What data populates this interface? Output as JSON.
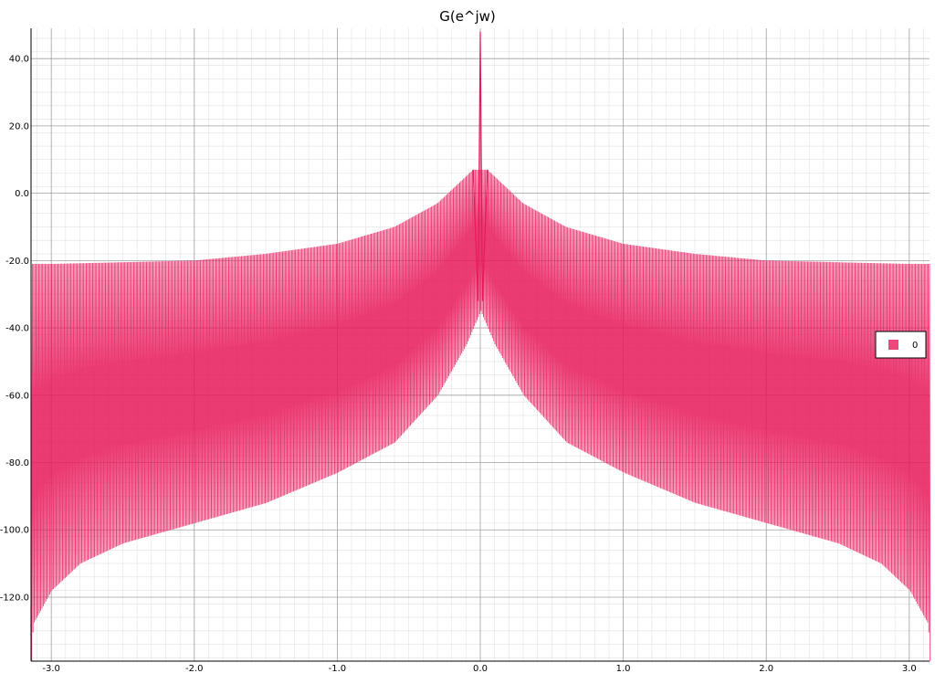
{
  "chart_data": {
    "type": "line",
    "title": "G(e^jw)",
    "xlabel": "",
    "ylabel": "",
    "xlim": [
      -3.1416,
      3.1416
    ],
    "ylim": [
      -139,
      49
    ],
    "grid": true,
    "minor_grid": true,
    "legend_position": "right",
    "x_ticks": [
      -3.0,
      -2.0,
      -1.0,
      0.0,
      1.0,
      2.0,
      3.0
    ],
    "x_tick_labels": [
      "-3.0",
      "-2.0",
      "-1.0",
      "0.0",
      "1.0",
      "2.0",
      "3.0"
    ],
    "y_ticks": [
      40,
      20,
      0,
      -20,
      -40,
      -60,
      -80,
      -100,
      -120
    ],
    "y_tick_labels": [
      "40.0",
      "20.0",
      "0.0",
      "-20.0",
      "-40.0",
      "-60.0",
      "-80.0",
      "-100.0",
      "-120.0"
    ],
    "series": [
      {
        "name": "0",
        "color": "#e8195a",
        "description_hint": "dense oscillating magnitude response",
        "peak": {
          "x": 0.0,
          "y": 48
        },
        "upper_envelope": [
          [
            -3.1416,
            -21
          ],
          [
            -3.0,
            -21
          ],
          [
            -2.5,
            -20.5
          ],
          [
            -2.0,
            -20
          ],
          [
            -1.5,
            -18
          ],
          [
            -1.0,
            -15
          ],
          [
            -0.6,
            -10
          ],
          [
            -0.3,
            -3
          ],
          [
            -0.05,
            7
          ],
          [
            0.05,
            7
          ],
          [
            0.3,
            -3
          ],
          [
            0.6,
            -10
          ],
          [
            1.0,
            -15
          ],
          [
            1.5,
            -18
          ],
          [
            2.0,
            -20
          ],
          [
            2.5,
            -20.5
          ],
          [
            3.0,
            -21
          ],
          [
            3.1416,
            -21
          ]
        ],
        "lower_envelope": [
          [
            -3.1416,
            -139
          ],
          [
            -3.13,
            -128
          ],
          [
            -3.0,
            -118
          ],
          [
            -2.8,
            -110
          ],
          [
            -2.5,
            -104
          ],
          [
            -2.0,
            -98
          ],
          [
            -1.5,
            -92
          ],
          [
            -1.0,
            -83
          ],
          [
            -0.6,
            -74
          ],
          [
            -0.3,
            -60
          ],
          [
            -0.1,
            -45
          ],
          [
            0.0,
            -35
          ],
          [
            0.1,
            -45
          ],
          [
            0.3,
            -60
          ],
          [
            0.6,
            -74
          ],
          [
            1.0,
            -83
          ],
          [
            1.5,
            -92
          ],
          [
            2.0,
            -98
          ],
          [
            2.5,
            -104
          ],
          [
            2.8,
            -110
          ],
          [
            3.0,
            -118
          ],
          [
            3.13,
            -128
          ],
          [
            3.1416,
            -139
          ]
        ]
      }
    ]
  }
}
